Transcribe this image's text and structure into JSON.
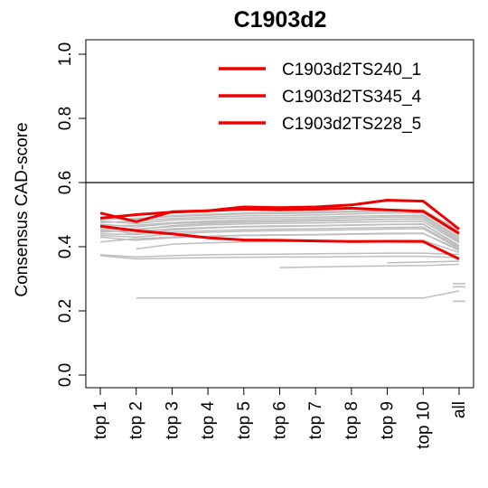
{
  "chart_data": {
    "type": "line",
    "title": "C1903d2",
    "xlabel": "",
    "ylabel": "Consensus CAD-score",
    "categories": [
      "top 1",
      "top 2",
      "top 3",
      "top 4",
      "top 5",
      "top 6",
      "top 7",
      "top 8",
      "top 9",
      "top 10",
      "all"
    ],
    "y_ticks": [
      "0.0",
      "0.2",
      "0.4",
      "0.6",
      "0.8",
      "1.0"
    ],
    "ylim": [
      0,
      1
    ],
    "reference_line": 0.6,
    "legend_position": "top-right",
    "colors": {
      "highlight": "#ee0000",
      "background": "#bebebe",
      "reference": "#000000"
    },
    "series": [
      {
        "name": "C1903d2TS240_1",
        "highlight": true,
        "values": [
          0.505,
          0.478,
          0.509,
          0.512,
          0.517,
          0.515,
          0.517,
          0.52,
          0.515,
          0.51,
          0.441
        ]
      },
      {
        "name": "C1903d2TS345_4",
        "highlight": true,
        "values": [
          0.464,
          0.45,
          0.44,
          0.428,
          0.421,
          0.42,
          0.418,
          0.416,
          0.417,
          0.416,
          0.362
        ]
      },
      {
        "name": "C1903d2TS228_5",
        "highlight": true,
        "values": [
          0.489,
          0.5,
          0.508,
          0.512,
          0.524,
          0.522,
          0.524,
          0.53,
          0.545,
          0.542,
          0.455
        ]
      },
      {
        "values": [
          0.48,
          0.472,
          0.483,
          0.487,
          0.49,
          0.491,
          0.492,
          0.495,
          0.497,
          0.498,
          0.43
        ]
      },
      {
        "values": [
          0.47,
          0.462,
          0.472,
          0.476,
          0.479,
          0.48,
          0.482,
          0.484,
          0.486,
          0.487,
          0.42
        ]
      },
      {
        "values": [
          0.46,
          0.455,
          0.463,
          0.468,
          0.471,
          0.473,
          0.474,
          0.476,
          0.478,
          0.479,
          0.412
        ]
      },
      {
        "values": [
          0.45,
          0.448,
          0.456,
          0.46,
          0.463,
          0.465,
          0.466,
          0.468,
          0.47,
          0.471,
          0.404
        ]
      },
      {
        "values": [
          0.475,
          0.48,
          0.488,
          0.492,
          0.496,
          0.497,
          0.499,
          0.502,
          0.505,
          0.506,
          0.436
        ]
      },
      {
        "values": [
          0.485,
          0.488,
          0.494,
          0.498,
          0.502,
          0.503,
          0.505,
          0.508,
          0.51,
          0.512,
          0.446
        ]
      },
      {
        "values": [
          0.44,
          0.438,
          0.446,
          0.45,
          0.453,
          0.455,
          0.456,
          0.458,
          0.46,
          0.461,
          0.398
        ]
      },
      {
        "values": [
          0.43,
          0.42,
          0.428,
          0.432,
          0.435,
          0.436,
          0.437,
          0.439,
          0.44,
          0.441,
          0.392
        ]
      },
      {
        "values": [
          0.415,
          0.425,
          0.43,
          0.433,
          0.436,
          0.437,
          0.438,
          0.44,
          0.442,
          0.442,
          0.388
        ]
      },
      {
        "values": [
          null,
          0.393,
          0.408,
          0.412,
          0.415,
          0.416,
          0.417,
          0.418,
          0.419,
          0.42,
          0.382
        ]
      },
      {
        "values": [
          0.375,
          0.368,
          0.372,
          0.375,
          0.376,
          0.377,
          0.378,
          0.379,
          0.38,
          0.38,
          0.376
        ]
      },
      {
        "values": [
          0.372,
          0.362,
          0.364,
          0.366,
          0.367,
          0.368,
          0.368,
          0.369,
          0.37,
          0.37,
          0.366
        ]
      },
      {
        "values": [
          null,
          null,
          null,
          null,
          null,
          0.335,
          0.337,
          0.339,
          0.34,
          0.341,
          0.345
        ]
      },
      {
        "values": [
          null,
          null,
          null,
          null,
          null,
          null,
          null,
          null,
          0.35,
          0.352,
          0.355
        ]
      },
      {
        "values": [
          null,
          0.24,
          0.24,
          0.24,
          0.24,
          0.24,
          0.24,
          0.24,
          0.24,
          0.24,
          0.262
        ]
      },
      {
        "values": [
          0.455,
          0.44,
          0.452,
          0.458,
          0.462,
          0.463,
          0.465,
          0.467,
          0.469,
          0.47,
          0.402
        ]
      },
      {
        "values": [
          0.465,
          0.467,
          0.475,
          0.48,
          0.484,
          0.485,
          0.487,
          0.49,
          0.492,
          0.493,
          0.425
        ]
      },
      {
        "values": [
          0.445,
          0.452,
          0.466,
          0.472,
          0.476,
          0.478,
          0.48,
          0.482,
          0.485,
          0.486,
          0.416
        ]
      },
      {
        "values": [
          0.49,
          0.485,
          0.497,
          0.501,
          0.505,
          0.506,
          0.508,
          0.511,
          0.513,
          0.515,
          0.45
        ]
      },
      {
        "values": [
          0.435,
          0.43,
          0.44,
          0.445,
          0.448,
          0.45,
          0.451,
          0.453,
          0.455,
          0.456,
          0.395
        ]
      },
      {
        "values": [
          null,
          null,
          null,
          null,
          null,
          null,
          null,
          null,
          null,
          null,
          0.23
        ]
      },
      {
        "values": [
          null,
          null,
          null,
          null,
          null,
          null,
          null,
          null,
          null,
          null,
          0.275
        ]
      },
      {
        "values": [
          null,
          null,
          null,
          null,
          null,
          null,
          null,
          null,
          null,
          null,
          0.285
        ]
      }
    ]
  }
}
